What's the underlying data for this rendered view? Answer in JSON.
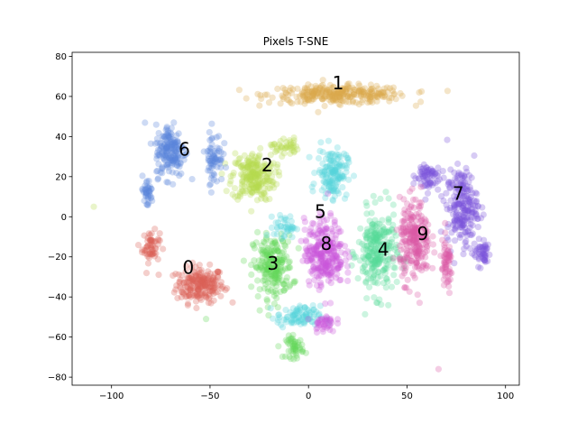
{
  "chart_data": {
    "type": "scatter",
    "title": "Pixels T-SNE",
    "xlabel": "",
    "ylabel": "",
    "xlim": [
      -120,
      107
    ],
    "ylim": [
      -84,
      82
    ],
    "xticks": [
      -100,
      -50,
      0,
      50,
      100
    ],
    "yticks": [
      -80,
      -60,
      -40,
      -20,
      0,
      20,
      40,
      60,
      80
    ],
    "xtick_labels": [
      "−100",
      "−50",
      "0",
      "50",
      "100"
    ],
    "ytick_labels": [
      "−80",
      "−60",
      "−40",
      "−20",
      "0",
      "20",
      "40",
      "60",
      "80"
    ],
    "grid": false,
    "legend": "none",
    "marker_alpha": 0.3,
    "clusters": [
      {
        "label": "0",
        "color": "#db5f57",
        "label_pos": [
          -61,
          -26
        ],
        "blobs": [
          {
            "cx": -55,
            "cy": -34,
            "sx": 11,
            "sy": 8,
            "n": 210
          },
          {
            "cx": -80,
            "cy": -15,
            "sx": 4,
            "sy": 7,
            "n": 60
          }
        ]
      },
      {
        "label": "1",
        "color": "#dbaa4d",
        "label_pos": [
          15,
          66
        ],
        "blobs": [
          {
            "cx": 15,
            "cy": 61,
            "sx": 32,
            "sy": 4,
            "n": 300
          }
        ]
      },
      {
        "label": "2",
        "color": "#b5d94e",
        "label_pos": [
          -21,
          25
        ],
        "blobs": [
          {
            "cx": -28,
            "cy": 20,
            "sx": 10,
            "sy": 11,
            "n": 230
          },
          {
            "cx": -12,
            "cy": 35,
            "sx": 6,
            "sy": 4,
            "n": 40
          }
        ]
      },
      {
        "label": "3",
        "color": "#62d65a",
        "label_pos": [
          -18,
          -24
        ],
        "blobs": [
          {
            "cx": -18,
            "cy": -25,
            "sx": 9,
            "sy": 14,
            "n": 220
          },
          {
            "cx": -7,
            "cy": -65,
            "sx": 4,
            "sy": 5,
            "n": 50
          }
        ]
      },
      {
        "label": "4",
        "color": "#57d997",
        "label_pos": [
          38,
          -17
        ],
        "blobs": [
          {
            "cx": 35,
            "cy": -18,
            "sx": 9,
            "sy": 19,
            "n": 260
          }
        ]
      },
      {
        "label": "5",
        "color": "#57d3db",
        "label_pos": [
          6,
          2
        ],
        "blobs": [
          {
            "cx": 12,
            "cy": 22,
            "sx": 7,
            "sy": 11,
            "n": 150
          },
          {
            "cx": -5,
            "cy": -50,
            "sx": 10,
            "sy": 5,
            "n": 90
          },
          {
            "cx": -12,
            "cy": -5,
            "sx": 5,
            "sy": 5,
            "n": 40
          }
        ]
      },
      {
        "label": "6",
        "color": "#5b85d9",
        "label_pos": [
          -63,
          33
        ],
        "blobs": [
          {
            "cx": -70,
            "cy": 33,
            "sx": 7,
            "sy": 12,
            "n": 180
          },
          {
            "cx": -48,
            "cy": 30,
            "sx": 4,
            "sy": 12,
            "n": 70
          },
          {
            "cx": -82,
            "cy": 12,
            "sx": 3,
            "sy": 7,
            "n": 40
          }
        ]
      },
      {
        "label": "7",
        "color": "#7b52db",
        "label_pos": [
          76,
          11
        ],
        "blobs": [
          {
            "cx": 78,
            "cy": 5,
            "sx": 7,
            "sy": 17,
            "n": 220
          },
          {
            "cx": 60,
            "cy": 20,
            "sx": 6,
            "sy": 7,
            "n": 70
          },
          {
            "cx": 88,
            "cy": -18,
            "sx": 4,
            "sy": 6,
            "n": 50
          }
        ]
      },
      {
        "label": "8",
        "color": "#cb57db",
        "label_pos": [
          9,
          -14
        ],
        "blobs": [
          {
            "cx": 8,
            "cy": -18,
            "sx": 9,
            "sy": 15,
            "n": 280
          },
          {
            "cx": 8,
            "cy": -53,
            "sx": 5,
            "sy": 4,
            "n": 40
          }
        ]
      },
      {
        "label": "9",
        "color": "#db5aa4",
        "label_pos": [
          58,
          -9
        ],
        "blobs": [
          {
            "cx": 54,
            "cy": -12,
            "sx": 7,
            "sy": 18,
            "n": 250
          },
          {
            "cx": 70,
            "cy": -25,
            "sx": 3,
            "sy": 12,
            "n": 60
          }
        ]
      }
    ],
    "outliers": [
      {
        "x": -109,
        "y": 5,
        "color": "#b5d94e"
      },
      {
        "x": 66,
        "y": -76,
        "color": "#db5aa4"
      },
      {
        "x": -52,
        "y": -51,
        "color": "#62d65a"
      }
    ]
  }
}
